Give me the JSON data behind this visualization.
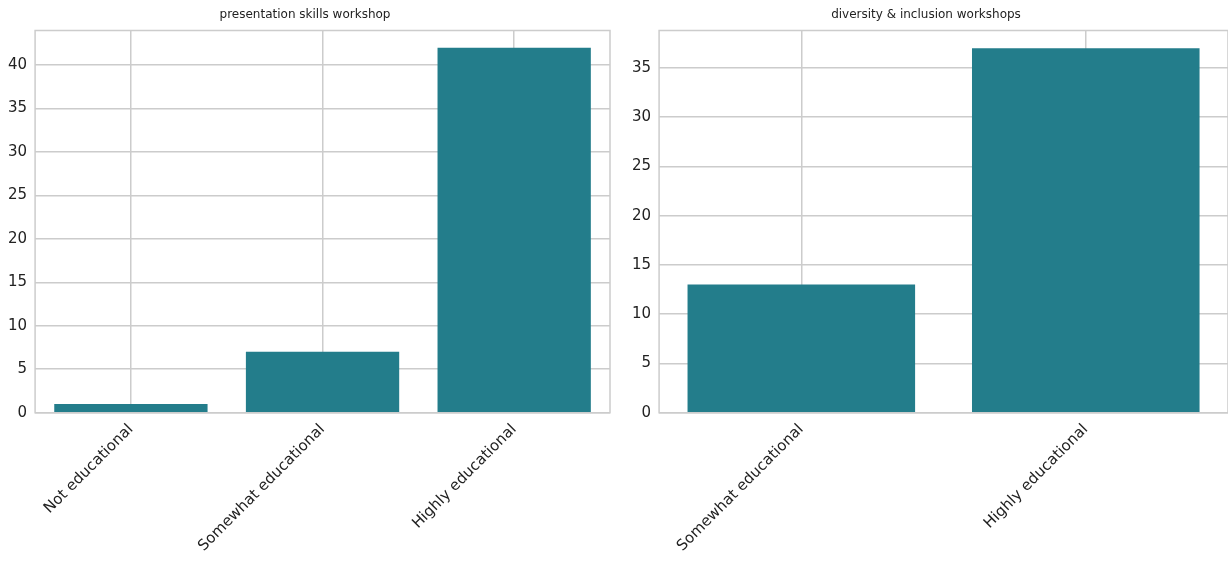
{
  "chart_data": [
    {
      "type": "bar",
      "title": "presentation skills workshop",
      "categories": [
        "Not educational",
        "Somewhat educational",
        "Highly educational"
      ],
      "values": [
        1,
        7,
        42
      ],
      "color": "#237d8b",
      "ylim": [
        0,
        44
      ],
      "yticks": [
        0,
        5,
        10,
        15,
        20,
        25,
        30,
        35,
        40
      ],
      "grid": true
    },
    {
      "type": "bar",
      "title": "diversity & inclusion workshops",
      "categories": [
        "Somewhat educational",
        "Highly educational"
      ],
      "values": [
        13,
        37
      ],
      "color": "#237d8b",
      "ylim": [
        0,
        38.8
      ],
      "yticks": [
        0,
        5,
        10,
        15,
        20,
        25,
        30,
        35
      ],
      "grid": true
    }
  ]
}
